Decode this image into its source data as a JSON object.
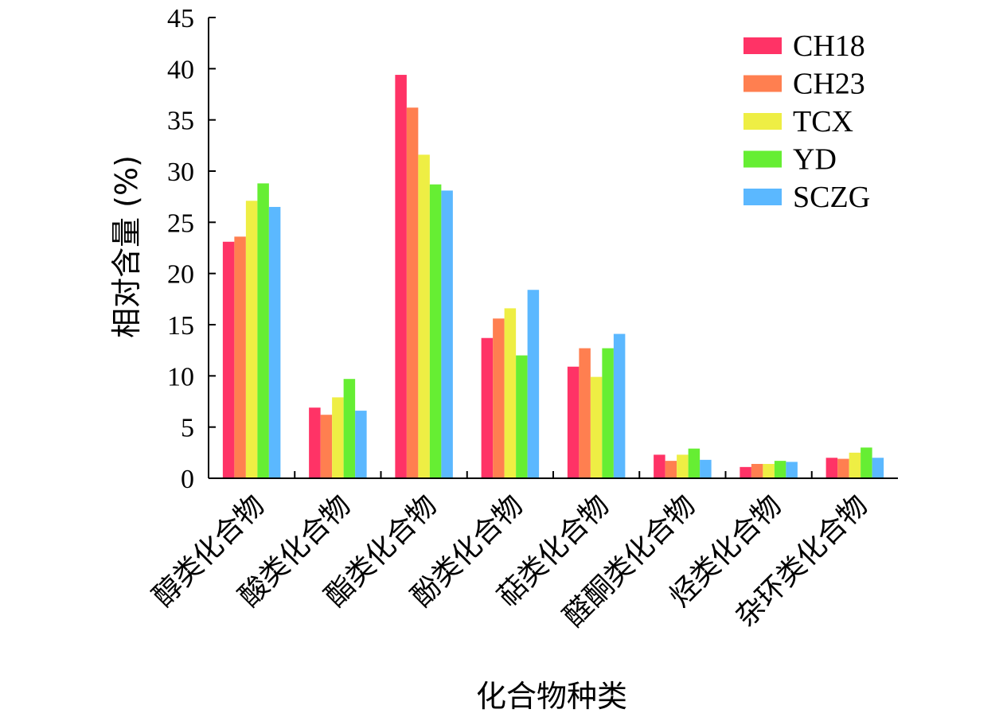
{
  "chart_data": {
    "type": "bar",
    "xlabel": "化合物种类",
    "ylabel": "相对含量 (%)",
    "ylim": [
      0,
      45
    ],
    "yticks": [
      0,
      5,
      10,
      15,
      20,
      25,
      30,
      35,
      40,
      45
    ],
    "grid": false,
    "legend_position": "top-right",
    "categories": [
      "醇类化合物",
      "酸类化合物",
      "酯类化合物",
      "酚类化合物",
      "萜类化合物",
      "醛酮类化合物",
      "烃类化合物",
      "杂环类化合物"
    ],
    "series": [
      {
        "name": "CH18",
        "color": "#ff3366",
        "values": [
          23.1,
          6.9,
          39.4,
          13.7,
          10.9,
          2.3,
          1.1,
          2.0
        ]
      },
      {
        "name": "CH23",
        "color": "#ff7f50",
        "values": [
          23.6,
          6.2,
          36.2,
          15.6,
          12.7,
          1.7,
          1.4,
          1.9
        ]
      },
      {
        "name": "TCX",
        "color": "#eeee44",
        "values": [
          27.1,
          7.9,
          31.6,
          16.6,
          9.9,
          2.3,
          1.4,
          2.5
        ]
      },
      {
        "name": "YD",
        "color": "#66ee33",
        "values": [
          28.8,
          9.7,
          28.7,
          12.0,
          12.7,
          2.9,
          1.7,
          3.0
        ]
      },
      {
        "name": "SCZG",
        "color": "#5bb8ff",
        "values": [
          26.5,
          6.6,
          28.1,
          18.4,
          14.1,
          1.8,
          1.6,
          2.0
        ]
      }
    ]
  }
}
